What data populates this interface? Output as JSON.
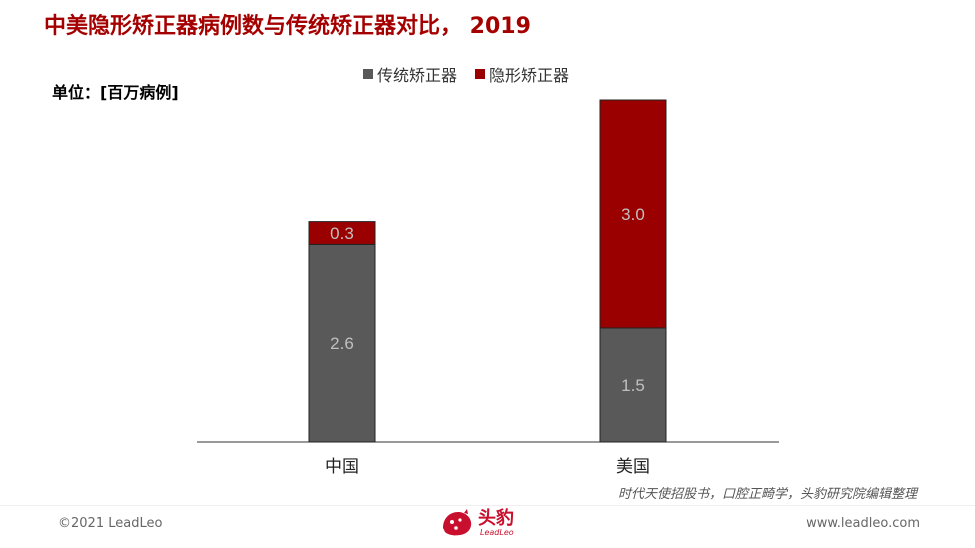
{
  "title": "中美隐形矫正器病例数与传统矫正器对比， 2019",
  "unit_label": "单位：[百万病例]",
  "source": "时代天使招股书，口腔正畸学，头豹研究院编辑整理",
  "footer": {
    "copyright": "©2021 LeadLeo",
    "website": "www.leadleo.com",
    "logo_cn": "头豹",
    "logo_en": "LeadLeo"
  },
  "colors": {
    "traditional": "#595959",
    "invisible": "#9b0000",
    "title": "#a50000"
  },
  "chart_data": {
    "type": "bar",
    "stacked": true,
    "categories": [
      "中国",
      "美国"
    ],
    "series": [
      {
        "name": "传统矫正器",
        "values": [
          2.6,
          1.5
        ],
        "labels": [
          "2.6",
          "1.5"
        ]
      },
      {
        "name": "隐形矫正器",
        "values": [
          0.3,
          3.0
        ],
        "labels": [
          "0.3",
          "3.0"
        ]
      }
    ],
    "ylim": [
      0,
      4.5
    ],
    "grid": false,
    "legend": "top-center"
  }
}
